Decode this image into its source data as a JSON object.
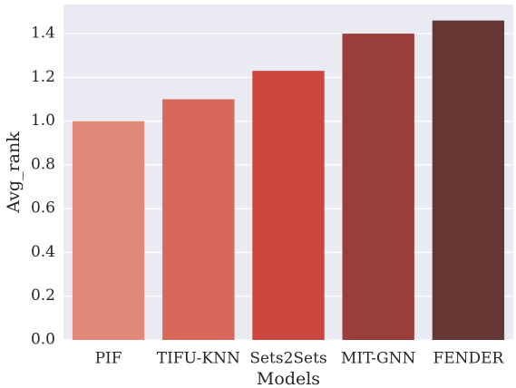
{
  "chart_data": {
    "type": "bar",
    "x_label": "Models",
    "y_label": "Avg_rank",
    "categories": [
      "PIF",
      "TIFU-KNN",
      "Sets2Sets",
      "MIT-GNN",
      "FENDER"
    ],
    "values": [
      1.0,
      1.1,
      1.23,
      1.4,
      1.46
    ],
    "colors": [
      "#e3897a",
      "#d9685a",
      "#cb463d",
      "#993e3a",
      "#663735"
    ],
    "ylim": [
      0,
      1.533
    ],
    "yticks": [
      {
        "value": 0,
        "label": "0.0"
      },
      0.2,
      0.4,
      0.6,
      0.8,
      {
        "value": 1,
        "label": "1.0"
      },
      1.2,
      1.4
    ],
    "grid": true
  }
}
